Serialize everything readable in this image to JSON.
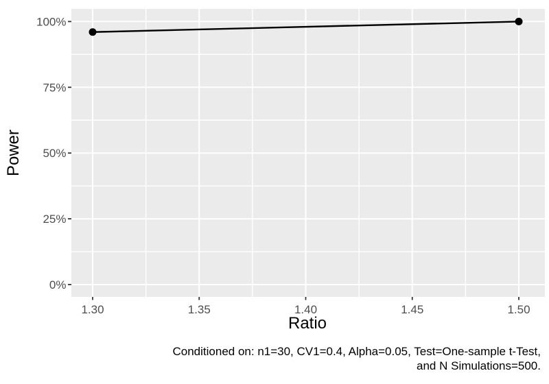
{
  "chart_data": {
    "type": "line",
    "title": "",
    "xlabel": "Ratio",
    "ylabel": "Power",
    "xlim": [
      1.3,
      1.5
    ],
    "ylim": [
      0,
      100
    ],
    "x_ticks": [
      1.3,
      1.35,
      1.4,
      1.45,
      1.5
    ],
    "x_tick_labels": [
      "1.30",
      "1.35",
      "1.40",
      "1.45",
      "1.50"
    ],
    "y_ticks": [
      0,
      25,
      50,
      75,
      100
    ],
    "y_tick_labels": [
      "0%",
      "25%",
      "50%",
      "75%",
      "100%"
    ],
    "grid": "major+minor",
    "legend": "none",
    "series": [
      {
        "name": "Power",
        "x": [
          1.3,
          1.5
        ],
        "y": [
          96,
          100
        ]
      }
    ],
    "y_unit": "%"
  },
  "caption": {
    "line1": "Conditioned on: n1=30, CV1=0.4, Alpha=0.05, Test=One-sample t-Test,",
    "line2": "and N Simulations=500."
  },
  "colors": {
    "page_bg": "#FFFFFF",
    "panel_bg": "#EBEBEB",
    "grid_major": "#FFFFFF",
    "grid_minor": "#FFFFFF",
    "data_line": "#000000",
    "data_point": "#000000",
    "tick_mark": "#333333",
    "tick_label": "#4D4D4D",
    "axis_title": "#000000",
    "caption_text": "#000000"
  }
}
